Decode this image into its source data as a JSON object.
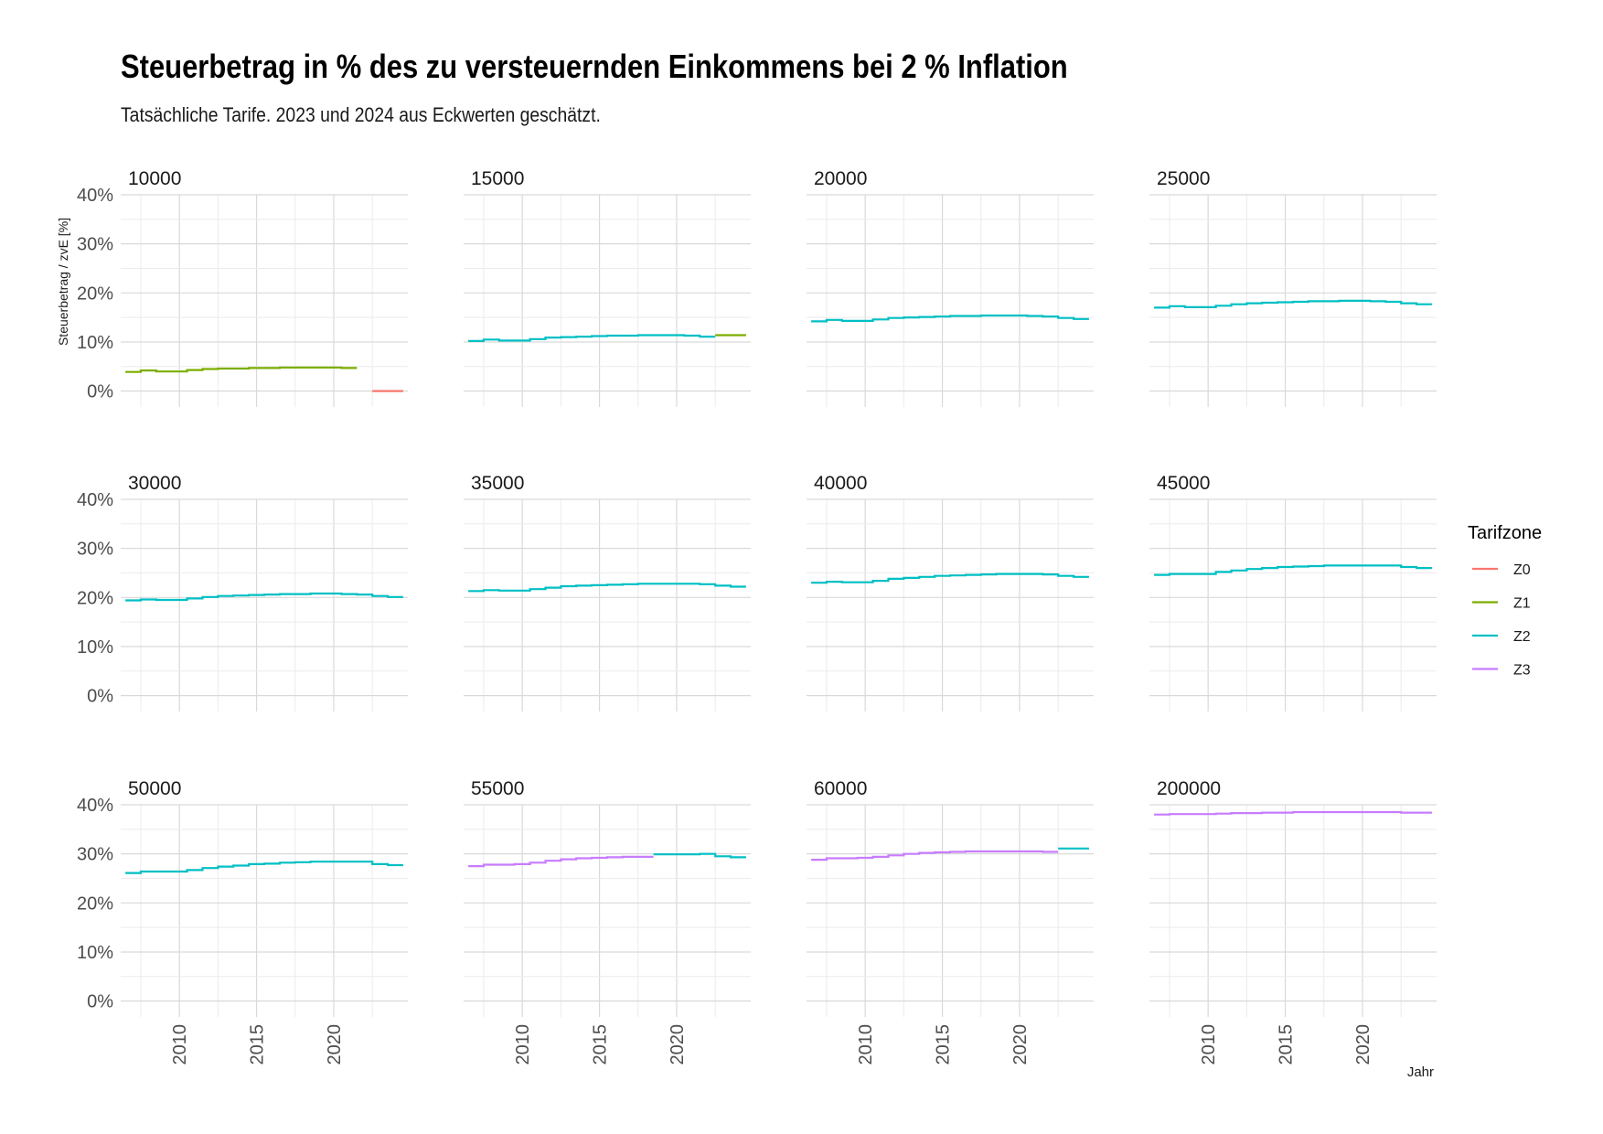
{
  "chart_data": {
    "type": "line",
    "title": "Steuerbetrag in % des zu versteuernden Einkommens bei 2 % Inflation",
    "subtitle": "Tatsächliche Tarife. 2023 und 2024 aus Eckwerten geschätzt.",
    "xlabel": "Jahr",
    "ylabel": "Steuerbetrag / zvE [%]",
    "xlim": [
      2006.2,
      2024.8
    ],
    "ylim": [
      -1,
      40
    ],
    "x_ticks": [
      "2010",
      "2015",
      "2020"
    ],
    "y_ticks": [
      "0%",
      "10%",
      "20%",
      "30%",
      "40%"
    ],
    "legend": {
      "title": "Tarifzone",
      "position": "right",
      "items": [
        {
          "name": "Z0",
          "color": "#F8766D"
        },
        {
          "name": "Z1",
          "color": "#7CAE00"
        },
        {
          "name": "Z2",
          "color": "#00BFC4"
        },
        {
          "name": "Z3",
          "color": "#C77CFF"
        }
      ]
    },
    "panels": [
      {
        "label": "10000",
        "segments": [
          {
            "zone": "Z1",
            "from": 2007,
            "to": 2021,
            "values": [
              3.9,
              4.2,
              4.0,
              4.0,
              4.3,
              4.5,
              4.6,
              4.6,
              4.7,
              4.7,
              4.8,
              4.8,
              4.8,
              4.8,
              4.7
            ]
          },
          {
            "zone": "Z0",
            "from": 2023,
            "to": 2024,
            "values": [
              0.0,
              0.0
            ]
          }
        ]
      },
      {
        "label": "15000",
        "segments": [
          {
            "zone": "Z2",
            "from": 2007,
            "to": 2022,
            "values": [
              10.2,
              10.5,
              10.3,
              10.3,
              10.6,
              10.9,
              11.0,
              11.1,
              11.2,
              11.3,
              11.3,
              11.4,
              11.4,
              11.4,
              11.3,
              11.1
            ]
          },
          {
            "zone": "Z1",
            "from": 2023,
            "to": 2024,
            "values": [
              11.4,
              11.4
            ]
          }
        ]
      },
      {
        "label": "20000",
        "segments": [
          {
            "zone": "Z2",
            "from": 2007,
            "to": 2024,
            "values": [
              14.2,
              14.5,
              14.3,
              14.3,
              14.6,
              14.9,
              15.0,
              15.1,
              15.2,
              15.3,
              15.3,
              15.4,
              15.4,
              15.4,
              15.3,
              15.2,
              14.9,
              14.7
            ]
          }
        ]
      },
      {
        "label": "25000",
        "segments": [
          {
            "zone": "Z2",
            "from": 2007,
            "to": 2024,
            "values": [
              17.0,
              17.3,
              17.1,
              17.1,
              17.4,
              17.7,
              17.9,
              18.0,
              18.1,
              18.2,
              18.3,
              18.3,
              18.4,
              18.4,
              18.3,
              18.2,
              17.9,
              17.7
            ]
          }
        ]
      },
      {
        "label": "30000",
        "segments": [
          {
            "zone": "Z2",
            "from": 2007,
            "to": 2024,
            "values": [
              19.4,
              19.6,
              19.5,
              19.5,
              19.8,
              20.1,
              20.3,
              20.4,
              20.5,
              20.6,
              20.7,
              20.7,
              20.8,
              20.8,
              20.7,
              20.6,
              20.3,
              20.1
            ]
          }
        ]
      },
      {
        "label": "35000",
        "segments": [
          {
            "zone": "Z2",
            "from": 2007,
            "to": 2024,
            "values": [
              21.3,
              21.5,
              21.4,
              21.4,
              21.7,
              22.0,
              22.3,
              22.4,
              22.5,
              22.6,
              22.7,
              22.8,
              22.8,
              22.8,
              22.8,
              22.7,
              22.4,
              22.2
            ]
          }
        ]
      },
      {
        "label": "40000",
        "segments": [
          {
            "zone": "Z2",
            "from": 2007,
            "to": 2024,
            "values": [
              23.0,
              23.2,
              23.1,
              23.1,
              23.4,
              23.8,
              24.0,
              24.2,
              24.4,
              24.5,
              24.6,
              24.7,
              24.8,
              24.8,
              24.8,
              24.7,
              24.4,
              24.2
            ]
          }
        ]
      },
      {
        "label": "45000",
        "segments": [
          {
            "zone": "Z2",
            "from": 2007,
            "to": 2024,
            "values": [
              24.6,
              24.8,
              24.8,
              24.8,
              25.2,
              25.5,
              25.8,
              26.0,
              26.2,
              26.3,
              26.4,
              26.5,
              26.5,
              26.5,
              26.5,
              26.5,
              26.2,
              26.0
            ]
          }
        ]
      },
      {
        "label": "50000",
        "segments": [
          {
            "zone": "Z2",
            "from": 2007,
            "to": 2024,
            "values": [
              26.1,
              26.4,
              26.4,
              26.4,
              26.7,
              27.1,
              27.4,
              27.6,
              27.9,
              28.0,
              28.2,
              28.3,
              28.4,
              28.4,
              28.4,
              28.4,
              27.9,
              27.7
            ]
          }
        ]
      },
      {
        "label": "55000",
        "segments": [
          {
            "zone": "Z3",
            "from": 2007,
            "to": 2018,
            "values": [
              27.5,
              27.8,
              27.8,
              27.9,
              28.2,
              28.6,
              28.9,
              29.1,
              29.2,
              29.3,
              29.4,
              29.4
            ]
          },
          {
            "zone": "Z2",
            "from": 2019,
            "to": 2024,
            "values": [
              29.9,
              29.9,
              29.9,
              30.0,
              29.5,
              29.3
            ]
          }
        ]
      },
      {
        "label": "60000",
        "segments": [
          {
            "zone": "Z3",
            "from": 2007,
            "to": 2022,
            "values": [
              28.8,
              29.1,
              29.1,
              29.2,
              29.4,
              29.7,
              30.0,
              30.2,
              30.3,
              30.4,
              30.5,
              30.5,
              30.5,
              30.5,
              30.5,
              30.4
            ]
          },
          {
            "zone": "Z2",
            "from": 2023,
            "to": 2024,
            "values": [
              31.1,
              31.1
            ]
          }
        ]
      },
      {
        "label": "200000",
        "segments": [
          {
            "zone": "Z3",
            "from": 2007,
            "to": 2024,
            "values": [
              38.0,
              38.1,
              38.1,
              38.1,
              38.2,
              38.3,
              38.3,
              38.4,
              38.4,
              38.5,
              38.5,
              38.5,
              38.5,
              38.5,
              38.5,
              38.5,
              38.4,
              38.4
            ]
          }
        ]
      }
    ]
  }
}
